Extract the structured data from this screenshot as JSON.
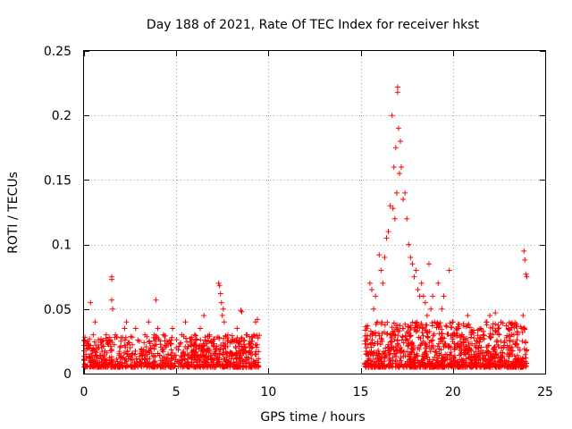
{
  "chart_data": {
    "type": "scatter",
    "title": "Day 188 of 2021, Rate Of TEC Index for receiver hkst",
    "xlabel": "GPS time / hours",
    "ylabel": "ROTI / TECUs",
    "xlim": [
      0,
      25
    ],
    "ylim": [
      0,
      0.25
    ],
    "xticks": [
      0,
      5,
      10,
      15,
      20,
      25
    ],
    "xtick_labels": [
      "0",
      "5",
      "10",
      "15",
      "20",
      "25"
    ],
    "yticks": [
      0,
      0.05,
      0.1,
      0.15,
      0.2,
      0.25
    ],
    "ytick_labels": [
      "0",
      "0.05",
      "0.1",
      "0.15",
      "0.2",
      "0.25"
    ],
    "grid": true,
    "marker": "+",
    "series_color": "#ff0000",
    "data_gap_hours": [
      9.5,
      15.2
    ],
    "series": [
      {
        "name": "ROTI",
        "x": [
          0.1,
          0.2,
          0.3,
          0.35,
          0.5,
          0.6,
          0.8,
          1.0,
          1.2,
          1.5,
          1.5,
          1.5,
          1.55,
          1.7,
          2.0,
          2.2,
          2.3,
          2.5,
          2.8,
          3.0,
          3.3,
          3.5,
          3.8,
          3.9,
          4.0,
          4.3,
          4.5,
          4.8,
          5.0,
          5.3,
          5.5,
          5.8,
          6.0,
          6.3,
          6.5,
          6.8,
          7.0,
          7.3,
          7.35,
          7.4,
          7.45,
          7.5,
          7.55,
          7.6,
          7.8,
          8.0,
          8.3,
          8.5,
          8.55,
          8.8,
          9.0,
          9.2,
          9.3,
          9.4,
          15.3,
          15.5,
          15.6,
          15.7,
          15.8,
          15.9,
          16.0,
          16.1,
          16.2,
          16.3,
          16.4,
          16.5,
          16.6,
          16.7,
          16.75,
          16.8,
          16.85,
          16.9,
          16.95,
          17.0,
          17.0,
          17.05,
          17.1,
          17.15,
          17.2,
          17.3,
          17.4,
          17.5,
          17.6,
          17.7,
          17.8,
          17.9,
          18.0,
          18.1,
          18.2,
          18.3,
          18.4,
          18.5,
          18.6,
          18.7,
          18.8,
          18.9,
          19.0,
          19.2,
          19.4,
          19.5,
          19.8,
          20.0,
          20.3,
          20.5,
          20.8,
          21.0,
          21.3,
          21.5,
          21.8,
          22.0,
          22.3,
          22.5,
          22.8,
          23.0,
          23.3,
          23.5,
          23.7,
          23.8,
          23.85,
          23.9,
          23.95,
          24.0
        ],
        "y": [
          0.015,
          0.025,
          0.02,
          0.055,
          0.03,
          0.04,
          0.02,
          0.025,
          0.03,
          0.075,
          0.073,
          0.057,
          0.05,
          0.03,
          0.025,
          0.035,
          0.04,
          0.02,
          0.035,
          0.025,
          0.03,
          0.04,
          0.03,
          0.057,
          0.035,
          0.03,
          0.025,
          0.035,
          0.02,
          0.03,
          0.04,
          0.025,
          0.03,
          0.035,
          0.045,
          0.03,
          0.025,
          0.07,
          0.068,
          0.062,
          0.055,
          0.045,
          0.05,
          0.04,
          0.03,
          0.025,
          0.035,
          0.049,
          0.048,
          0.03,
          0.025,
          0.03,
          0.04,
          0.042,
          0.02,
          0.07,
          0.065,
          0.05,
          0.06,
          0.04,
          0.092,
          0.08,
          0.07,
          0.09,
          0.105,
          0.11,
          0.13,
          0.2,
          0.128,
          0.16,
          0.12,
          0.175,
          0.14,
          0.222,
          0.218,
          0.19,
          0.155,
          0.18,
          0.16,
          0.135,
          0.14,
          0.12,
          0.1,
          0.09,
          0.085,
          0.075,
          0.08,
          0.065,
          0.06,
          0.07,
          0.06,
          0.055,
          0.045,
          0.085,
          0.05,
          0.06,
          0.04,
          0.07,
          0.05,
          0.06,
          0.08,
          0.04,
          0.035,
          0.03,
          0.045,
          0.03,
          0.025,
          0.035,
          0.04,
          0.045,
          0.047,
          0.03,
          0.025,
          0.035,
          0.03,
          0.03,
          0.035,
          0.045,
          0.095,
          0.088,
          0.077,
          0.075
        ]
      }
    ]
  }
}
